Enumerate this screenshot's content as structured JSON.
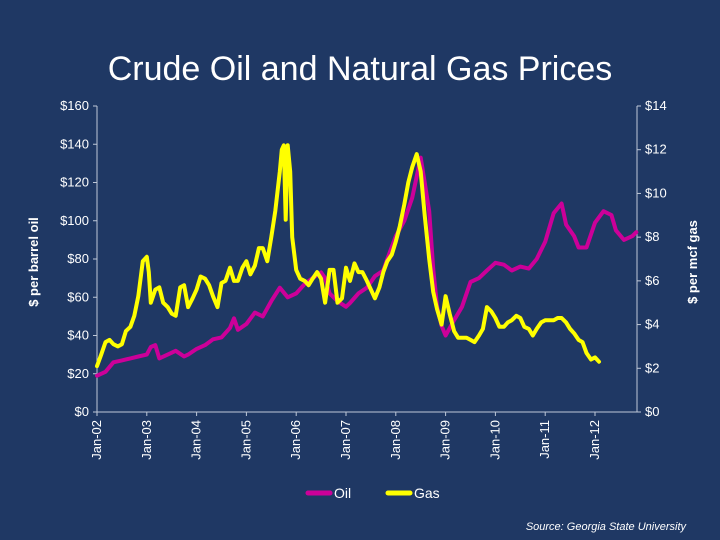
{
  "chart_data": {
    "type": "line",
    "title": "Crude Oil and Natural Gas Prices",
    "ylabel": "$ per barrel oil",
    "y2label": "$ per mcf gas",
    "ylim": [
      0,
      160
    ],
    "y2lim": [
      0,
      14
    ],
    "y_ticks": [
      "$0",
      "$20",
      "$40",
      "$60",
      "$80",
      "$100",
      "$120",
      "$140",
      "$160"
    ],
    "y2_ticks": [
      "$0",
      "$2",
      "$4",
      "$6",
      "$8",
      "$10",
      "$12",
      "$14"
    ],
    "x_ticks": [
      "Jan-02",
      "Jan-03",
      "Jan-04",
      "Jan-05",
      "Jan-06",
      "Jan-07",
      "Jan-08",
      "Jan-09",
      "Jan-10",
      "Jan-11",
      "Jan-12"
    ],
    "x_range": [
      2002.0,
      2012.8
    ],
    "legend": "bottom-center",
    "source": "Source: Georgia State University",
    "series": [
      {
        "name": "Oil",
        "axis": "left",
        "color": "#cc0099",
        "x": [
          2002.0,
          2002.17,
          2002.33,
          2002.5,
          2002.67,
          2002.83,
          2003.0,
          2003.08,
          2003.17,
          2003.25,
          2003.42,
          2003.58,
          2003.75,
          2003.83,
          2004.0,
          2004.17,
          2004.33,
          2004.5,
          2004.67,
          2004.75,
          2004.83,
          2005.0,
          2005.17,
          2005.33,
          2005.5,
          2005.67,
          2005.83,
          2006.0,
          2006.17,
          2006.33,
          2006.5,
          2006.58,
          2006.67,
          2006.83,
          2007.0,
          2007.08,
          2007.25,
          2007.42,
          2007.58,
          2007.75,
          2007.83,
          2008.0,
          2008.17,
          2008.33,
          2008.5,
          2008.58,
          2008.67,
          2008.75,
          2008.83,
          2008.92,
          2009.0,
          2009.17,
          2009.33,
          2009.5,
          2009.67,
          2009.83,
          2010.0,
          2010.17,
          2010.33,
          2010.5,
          2010.67,
          2010.83,
          2011.0,
          2011.17,
          2011.33,
          2011.42,
          2011.58,
          2011.67,
          2011.83,
          2012.0,
          2012.17,
          2012.33,
          2012.42,
          2012.58,
          2012.75,
          2012.83
        ],
        "y": [
          19,
          21,
          26,
          27,
          28,
          29,
          30,
          34,
          35,
          28,
          30,
          32,
          29,
          30,
          33,
          35,
          38,
          39,
          44,
          49,
          43,
          46,
          52,
          50,
          58,
          65,
          60,
          62,
          67,
          70,
          73,
          70,
          62,
          58,
          55,
          57,
          62,
          65,
          71,
          74,
          80,
          92,
          100,
          112,
          133,
          120,
          105,
          75,
          55,
          45,
          40,
          48,
          55,
          68,
          70,
          74,
          78,
          77,
          74,
          76,
          75,
          80,
          89,
          104,
          109,
          98,
          92,
          86,
          86,
          99,
          105,
          103,
          95,
          90,
          92,
          94
        ]
      },
      {
        "name": "Gas",
        "axis": "right",
        "color": "#ffff00",
        "x": [
          2002.0,
          2002.08,
          2002.17,
          2002.25,
          2002.33,
          2002.42,
          2002.5,
          2002.58,
          2002.67,
          2002.75,
          2002.83,
          2002.92,
          2003.0,
          2003.04,
          2003.08,
          2003.17,
          2003.25,
          2003.33,
          2003.42,
          2003.5,
          2003.58,
          2003.67,
          2003.75,
          2003.83,
          2003.92,
          2004.0,
          2004.08,
          2004.17,
          2004.25,
          2004.33,
          2004.42,
          2004.5,
          2004.58,
          2004.67,
          2004.75,
          2004.83,
          2004.92,
          2005.0,
          2005.08,
          2005.17,
          2005.25,
          2005.33,
          2005.42,
          2005.5,
          2005.58,
          2005.67,
          2005.71,
          2005.75,
          2005.79,
          2005.83,
          2005.88,
          2005.92,
          2006.0,
          2006.08,
          2006.17,
          2006.25,
          2006.33,
          2006.42,
          2006.5,
          2006.58,
          2006.67,
          2006.75,
          2006.83,
          2006.92,
          2007.0,
          2007.08,
          2007.17,
          2007.25,
          2007.33,
          2007.42,
          2007.5,
          2007.58,
          2007.67,
          2007.75,
          2007.83,
          2007.92,
          2008.0,
          2008.08,
          2008.17,
          2008.25,
          2008.33,
          2008.42,
          2008.5,
          2008.58,
          2008.67,
          2008.75,
          2008.83,
          2008.92,
          2009.0,
          2009.08,
          2009.17,
          2009.25,
          2009.33,
          2009.42,
          2009.5,
          2009.58,
          2009.67,
          2009.75,
          2009.83,
          2009.92,
          2010.0,
          2010.08,
          2010.17,
          2010.25,
          2010.33,
          2010.42,
          2010.5,
          2010.58,
          2010.67,
          2010.75,
          2010.83,
          2010.92,
          2011.0,
          2011.08,
          2011.17,
          2011.25,
          2011.33,
          2011.42,
          2011.5,
          2011.58,
          2011.67,
          2011.75,
          2011.83,
          2011.92,
          2012.0,
          2012.08
        ],
        "y": [
          2.1,
          2.6,
          3.2,
          3.3,
          3.1,
          3.0,
          3.1,
          3.7,
          3.9,
          4.4,
          5.3,
          6.9,
          7.1,
          6.4,
          5.0,
          5.6,
          5.7,
          5.0,
          4.8,
          4.5,
          4.4,
          5.7,
          5.8,
          4.8,
          5.2,
          5.6,
          6.2,
          6.1,
          5.8,
          5.3,
          4.8,
          5.9,
          6.0,
          6.6,
          6.0,
          6.0,
          6.6,
          6.9,
          6.3,
          6.7,
          7.5,
          7.5,
          6.9,
          8.0,
          9.2,
          11.0,
          12.0,
          12.2,
          8.8,
          12.2,
          11.0,
          8.0,
          6.5,
          6.1,
          6.0,
          5.8,
          6.1,
          6.4,
          6.1,
          5.0,
          6.5,
          6.5,
          5.0,
          5.2,
          6.6,
          6.0,
          6.8,
          6.4,
          6.4,
          6.0,
          5.6,
          5.2,
          5.7,
          6.4,
          6.9,
          7.2,
          7.8,
          8.5,
          9.5,
          10.5,
          11.2,
          11.8,
          11.0,
          9.0,
          7.0,
          5.5,
          4.7,
          4.0,
          5.3,
          4.5,
          3.7,
          3.4,
          3.4,
          3.4,
          3.3,
          3.2,
          3.5,
          3.8,
          4.8,
          4.6,
          4.3,
          3.9,
          3.9,
          4.1,
          4.2,
          4.4,
          4.3,
          3.9,
          3.8,
          3.5,
          3.8,
          4.1,
          4.2,
          4.2,
          4.2,
          4.3,
          4.3,
          4.1,
          3.8,
          3.6,
          3.3,
          3.2,
          2.7,
          2.4,
          2.5,
          2.3
        ]
      }
    ]
  }
}
